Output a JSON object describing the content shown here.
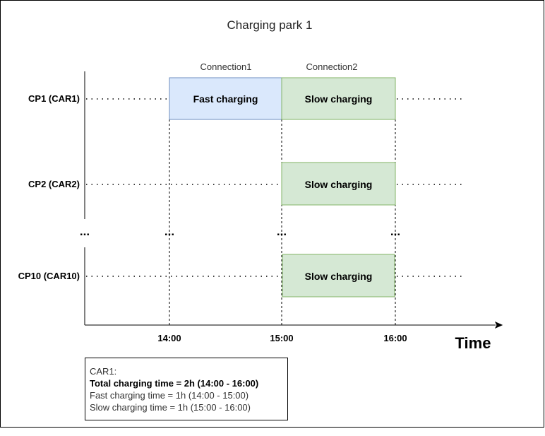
{
  "title": "Charging park 1",
  "connections": [
    "Connection1",
    "Connection2"
  ],
  "rows": [
    {
      "label": "CP1 (CAR1)"
    },
    {
      "label": "CP2 (CAR2)"
    },
    {
      "label": "CP10 (CAR10)"
    }
  ],
  "ellipsis": "...",
  "time_ticks": [
    "14:00",
    "15:00",
    "16:00"
  ],
  "time_axis_label": "Time",
  "blocks": {
    "fast": "Fast charging",
    "slow": "Slow charging"
  },
  "colors": {
    "fast_fill": "#dae8fc",
    "fast_stroke": "#6c8ebf",
    "slow_fill": "#d5e8d4",
    "slow_stroke": "#82b366"
  },
  "note": {
    "title": "CAR1:",
    "total": "Total charging time = 2h (14:00 - 16:00)",
    "fast": "Fast charging time = 1h (14:00 - 15:00)",
    "slow": "Slow charging time = 1h (15:00 - 16:00)"
  }
}
